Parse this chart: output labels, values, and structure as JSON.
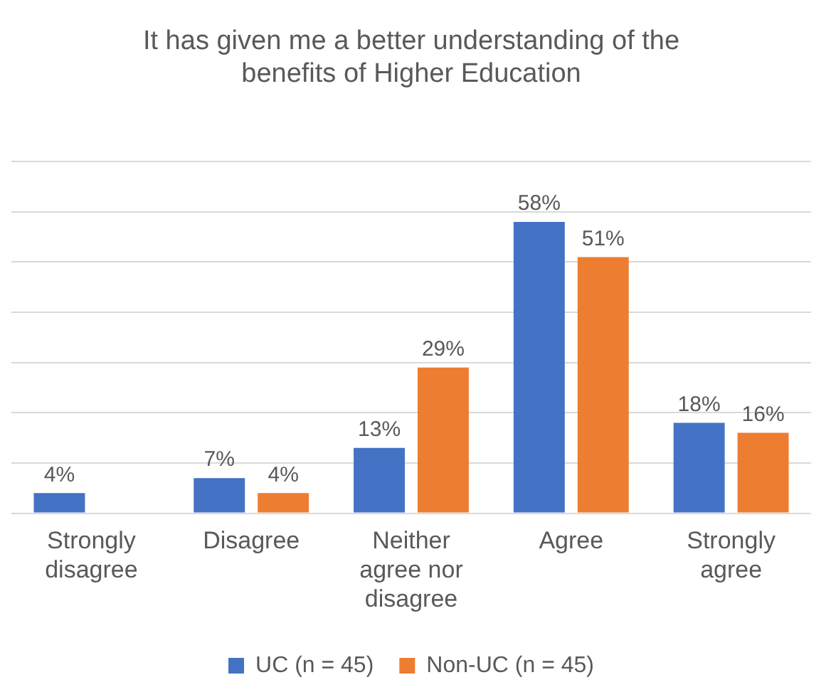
{
  "chart_data": {
    "type": "bar",
    "title": "It has given me a better understanding of the benefits of Higher Education",
    "categories": [
      "Strongly disagree",
      "Disagree",
      "Neither agree nor disagree",
      "Agree",
      "Strongly agree"
    ],
    "series": [
      {
        "name": "UC (n = 45)",
        "color": "#4472c4",
        "values": [
          4,
          7,
          13,
          58,
          18
        ],
        "value_labels": [
          "4%",
          "7%",
          "13%",
          "58%",
          "18%"
        ]
      },
      {
        "name": "Non-UC (n = 45)",
        "color": "#ed7d31",
        "values": [
          null,
          4,
          29,
          51,
          16
        ],
        "value_labels": [
          null,
          "4%",
          "29%",
          "51%",
          "16%"
        ]
      }
    ],
    "ylim": [
      0,
      70
    ],
    "yticks": [
      0,
      10,
      20,
      30,
      40,
      50,
      60,
      70
    ],
    "grid": "y",
    "tick_labels": "x",
    "legend": "bottom"
  }
}
